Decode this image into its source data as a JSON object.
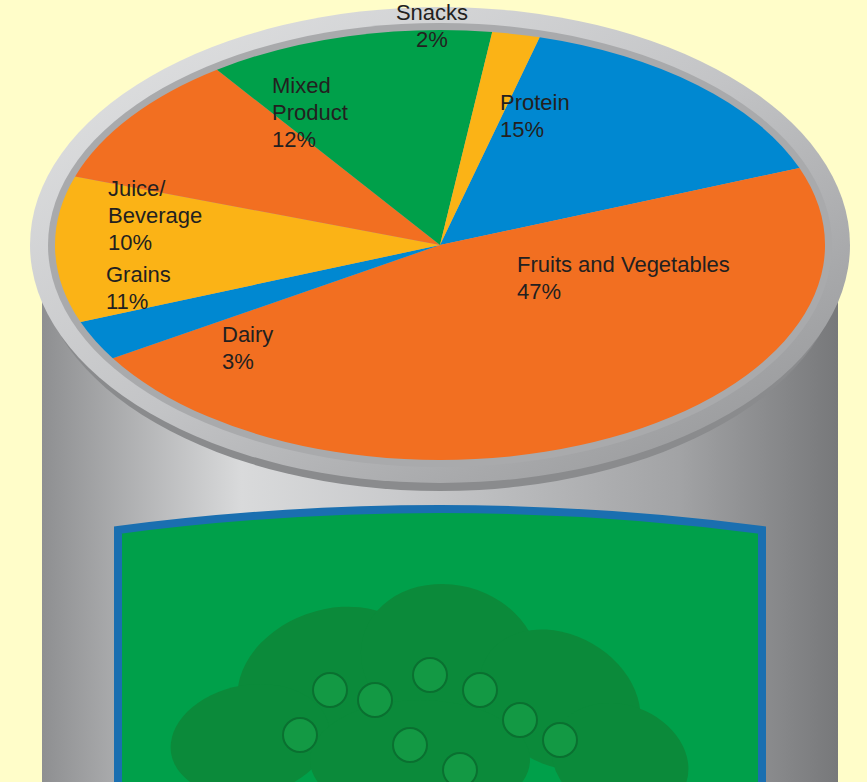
{
  "chart_data": {
    "type": "pie",
    "categories": [
      "Protein",
      "Fruits and Vegetables",
      "Dairy",
      "Grains",
      "Juice/Beverage",
      "Mixed Product",
      "Snacks"
    ],
    "values": [
      15,
      47,
      3,
      11,
      10,
      12,
      2
    ],
    "value_labels": [
      "15%",
      "47%",
      "3%",
      "11%",
      "10%",
      "12%",
      "2%"
    ],
    "colors": [
      "#0088d1",
      "#f26f21",
      "#0088d1",
      "#fbb316",
      "#f26f21",
      "#00a04a",
      "#fbb316"
    ],
    "data_labels": true
  }
}
